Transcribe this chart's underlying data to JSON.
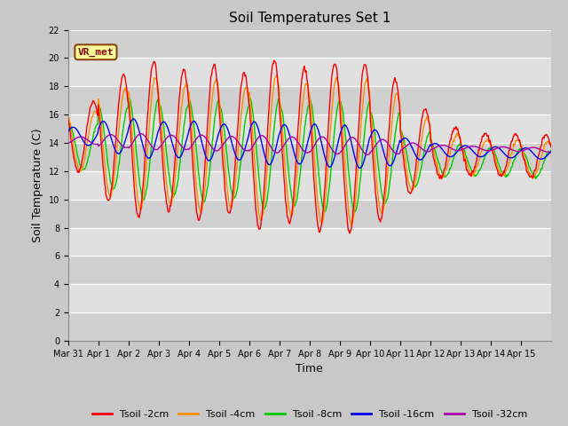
{
  "title": "Soil Temperatures Set 1",
  "xlabel": "Time",
  "ylabel": "Soil Temperature (C)",
  "ylim": [
    0,
    22
  ],
  "yticks": [
    0,
    2,
    4,
    6,
    8,
    10,
    12,
    14,
    16,
    18,
    20,
    22
  ],
  "x_labels": [
    "Mar 31",
    "Apr 1",
    "Apr 2",
    "Apr 3",
    "Apr 4",
    "Apr 5",
    "Apr 6",
    "Apr 7",
    "Apr 8",
    "Apr 9",
    "Apr 10",
    "Apr 11",
    "Apr 12",
    "Apr 13",
    "Apr 14",
    "Apr 15"
  ],
  "series_colors": [
    "#ff0000",
    "#ff8c00",
    "#00cc00",
    "#0000ff",
    "#aa00aa"
  ],
  "series_labels": [
    "Tsoil -2cm",
    "Tsoil -4cm",
    "Tsoil -8cm",
    "Tsoil -16cm",
    "Tsoil -32cm"
  ],
  "bg_color": "#e8e8e8",
  "annotation_text": "VR_met",
  "annotation_box_color": "#ffff99",
  "annotation_border_color": "#8b4513",
  "band_color_light": "#e8e8e8",
  "band_color_dark": "#d8d8d8"
}
